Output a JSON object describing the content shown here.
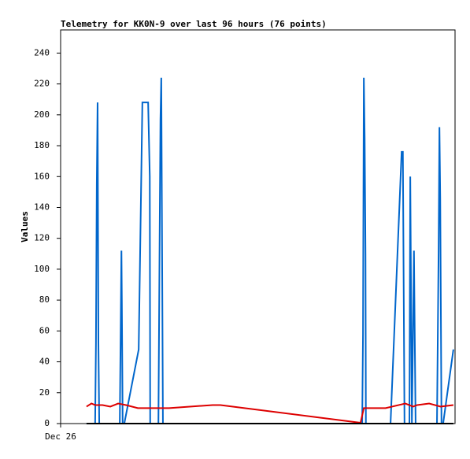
{
  "chart_data": {
    "type": "line",
    "title": "Telemetry for KK0N-9 over last 96 hours (76 points)",
    "ylabel": "Values",
    "xlim": [
      0,
      96
    ],
    "xticks": [
      {
        "value": 0,
        "label": "Dec 26"
      }
    ],
    "ylim": [
      0,
      255
    ],
    "yticks": [
      0,
      20,
      40,
      60,
      80,
      100,
      120,
      140,
      160,
      180,
      200,
      220,
      240
    ],
    "grid": false,
    "series": [
      {
        "color": "#0066cc",
        "x": [
          6.3,
          8.4,
          8.6,
          8.8,
          9.0,
          9.2,
          9.4,
          14.4,
          14.6,
          14.8,
          14.9,
          15.1,
          15.5,
          19.0,
          19.9,
          21.3,
          21.7,
          21.8,
          23.8,
          24.1,
          24.3,
          24.5,
          24.7,
          24.9,
          73.4,
          73.6,
          73.8,
          74.0,
          74.2,
          74.3,
          80.3,
          83.0,
          83.3,
          83.7,
          84.9,
          85.1,
          85.3,
          85.5,
          86.0,
          86.2,
          86.4,
          91.6,
          92.0,
          92.2,
          92.4,
          92.7,
          93.1,
          95.6
        ],
        "values": [
          0,
          0,
          52,
          155,
          208,
          52,
          0,
          0,
          55,
          112,
          80,
          0,
          0,
          48,
          208,
          208,
          160,
          0,
          0,
          120,
          197,
          224,
          110,
          0,
          0,
          58,
          224,
          185,
          110,
          0,
          0,
          176,
          176,
          0,
          0,
          160,
          80,
          0,
          112,
          55,
          0,
          0,
          112,
          192,
          145,
          0,
          0,
          48
        ]
      },
      {
        "color": "#dd0000",
        "x": [
          6.3,
          7.5,
          8.4,
          10.2,
          12.1,
          14.0,
          15.9,
          18.8,
          26.4,
          37.0,
          38.9,
          73.0,
          73.8,
          79.1,
          83.9,
          85.8,
          86.8,
          89.7,
          92.5,
          95.6
        ],
        "values": [
          11,
          13,
          12,
          12,
          11,
          13,
          12,
          10,
          10,
          12,
          12,
          0.5,
          10,
          10,
          13,
          11,
          12,
          13,
          11,
          12
        ]
      },
      {
        "color": "#000000",
        "x": [
          6.3,
          95.6
        ],
        "values": [
          0,
          0
        ]
      }
    ]
  }
}
